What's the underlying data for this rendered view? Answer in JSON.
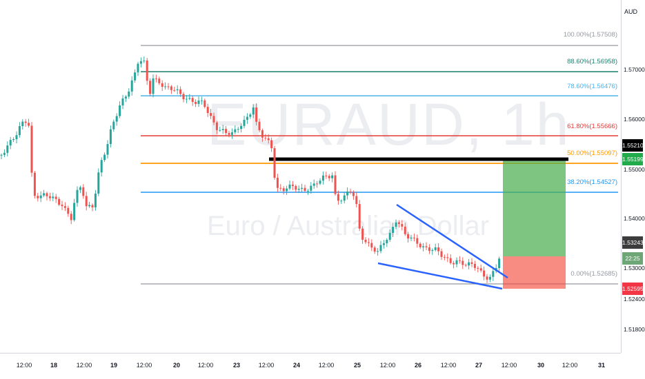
{
  "watermark": {
    "symbol": "EURAUD, 1h",
    "description": "Euro / Australian Dollar"
  },
  "price_axis": {
    "currency": "AUD",
    "ticks": [
      "1.57000",
      "1.56000",
      "1.55000",
      "1.54000",
      "1.53000",
      "1.52400",
      "1.51800"
    ],
    "tags": [
      {
        "text": "1.55210",
        "color": "#000000",
        "name": "black-level-price-tag"
      },
      {
        "text": "1.55199",
        "color": "#22ab4a",
        "name": "target-price-tag"
      },
      {
        "text": "1.53243",
        "color": "#3c3c3c",
        "name": "current-price-tag"
      },
      {
        "text": "22:25",
        "color": "#6fa678",
        "name": "countdown-tag"
      },
      {
        "text": "1.52595",
        "color": "#f23645",
        "name": "stop-price-tag"
      }
    ]
  },
  "time_axis": {
    "ticks": [
      "12:00",
      "18",
      "12:00",
      "19",
      "12:00",
      "20",
      "12:00",
      "23",
      "12:00",
      "24",
      "12:00",
      "25",
      "12:00",
      "26",
      "12:00",
      "27",
      "12:00",
      "30",
      "12:00",
      "31"
    ]
  },
  "fibonacci": {
    "levels": [
      {
        "label": "100.00%(1.57508)",
        "color": "#9598a1"
      },
      {
        "label": "88.60%(1.56958)",
        "color": "#1a7f6e"
      },
      {
        "label": "78.60%(1.56476)",
        "color": "#4bb2e8"
      },
      {
        "label": "61.80%(1.55666)",
        "color": "#e53935"
      },
      {
        "label": "50.00%(1.55097)",
        "color": "#ff9800"
      },
      {
        "label": "38.20%(1.54527)",
        "color": "#2196f3"
      },
      {
        "label": "0.00%(1.52685)",
        "color": "#9598a1"
      }
    ]
  },
  "drawings": {
    "wedge_color": "#2962ff",
    "target_zone_color": "#4caf50",
    "stop_zone_color": "#f44336",
    "black_level_color": "#000000"
  },
  "colors": {
    "bull": "#26a69a",
    "bear": "#ef5350"
  }
}
